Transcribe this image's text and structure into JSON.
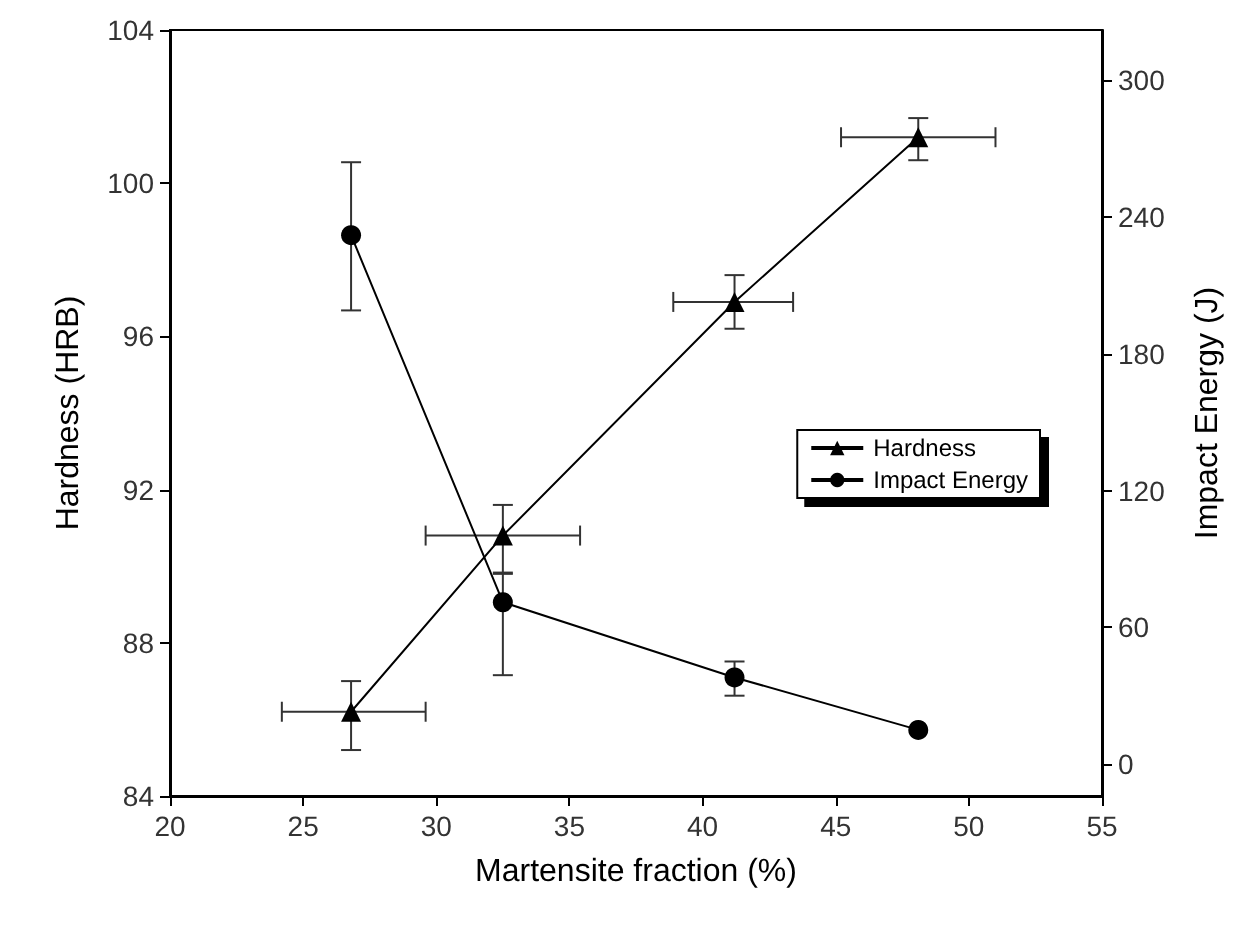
{
  "chart_data": {
    "type": "line",
    "xlabel": "Martensite fraction (%)",
    "ylabel": "Hardness (HRB)",
    "y2label": "Impact Energy (J)",
    "x": [
      26.8,
      32.5,
      41.2,
      48.1
    ],
    "series": [
      {
        "name": "Hardness",
        "color": "#000000",
        "marker": "triangle",
        "values": [
          86.2,
          90.8,
          96.9,
          101.2
        ],
        "errors": [
          [
            85.2,
            87.0
          ],
          [
            89.8,
            91.6
          ],
          [
            96.2,
            97.6
          ],
          [
            100.6,
            101.7
          ]
        ],
        "xerrors": [
          [
            24.2,
            29.6
          ],
          [
            29.6,
            35.4
          ],
          [
            38.9,
            43.4
          ],
          [
            45.2,
            51.0
          ]
        ]
      },
      {
        "name": "Impact Energy",
        "color": "#000000",
        "marker": "circle",
        "axis": "y2",
        "values": [
          232,
          71,
          38,
          15
        ],
        "errors": [
          [
            199,
            264
          ],
          [
            39,
            84
          ],
          [
            30,
            45
          ],
          null
        ]
      }
    ],
    "xlim": [
      20,
      55
    ],
    "xticks": [
      20,
      25,
      30,
      35,
      40,
      45,
      50,
      55
    ],
    "ylim": [
      84,
      104
    ],
    "yticks": [
      84,
      88,
      92,
      96,
      100,
      104
    ],
    "y2lim": [
      -14,
      322
    ],
    "y2ticks": [
      0,
      60,
      120,
      180,
      240,
      300
    ],
    "legend": "center right",
    "grid": false,
    "line_style": "solid"
  }
}
